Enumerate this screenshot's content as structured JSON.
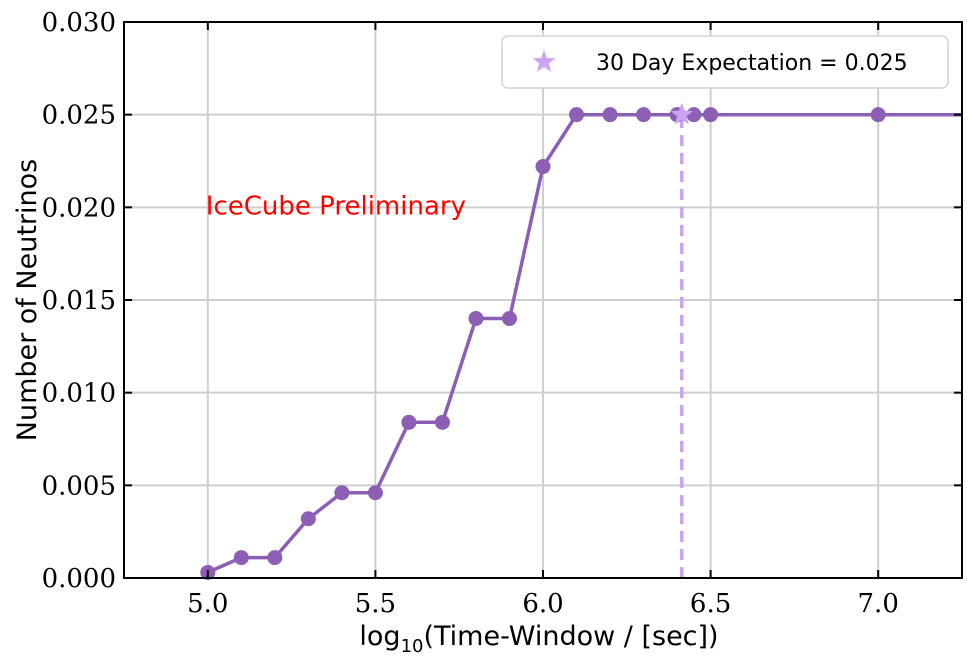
{
  "chart_data": {
    "type": "line",
    "title": "",
    "xlabel_prefix": "log",
    "xlabel_sub": "10",
    "xlabel_rest": "(Time-Window / [sec])",
    "ylabel": "Number of Neutrinos",
    "xlim": [
      4.75,
      7.25
    ],
    "ylim": [
      0.0,
      0.03
    ],
    "grid": true,
    "x_ticks": [
      5.0,
      5.5,
      6.0,
      6.5,
      7.0
    ],
    "x_tick_labels": [
      "5.0",
      "5.5",
      "6.0",
      "6.5",
      "7.0"
    ],
    "y_ticks": [
      0.0,
      0.005,
      0.01,
      0.015,
      0.02,
      0.025,
      0.03
    ],
    "y_tick_labels": [
      "0.000",
      "0.005",
      "0.010",
      "0.015",
      "0.020",
      "0.025",
      "0.030"
    ],
    "series": [
      {
        "name": "Number of Neutrinos",
        "color": "#8c5fb5",
        "x": [
          5.0,
          5.1,
          5.2,
          5.3,
          5.4,
          5.5,
          5.6,
          5.7,
          5.8,
          5.9,
          6.0,
          6.1,
          6.2,
          6.3,
          6.4,
          6.45,
          6.5,
          7.0,
          7.25
        ],
        "y": [
          0.0003,
          0.0011,
          0.0011,
          0.0032,
          0.0046,
          0.0046,
          0.0084,
          0.0084,
          0.014,
          0.014,
          0.0222,
          0.025,
          0.025,
          0.025,
          0.025,
          0.025,
          0.025,
          0.025,
          0.025
        ],
        "markers": [
          true,
          true,
          true,
          true,
          true,
          true,
          true,
          true,
          true,
          true,
          true,
          true,
          true,
          true,
          true,
          true,
          true,
          true,
          false
        ]
      }
    ],
    "expectation": {
      "label": "30 Day Expectation = 0.025",
      "x": 6.414,
      "y": 0.025,
      "color": "#c9a4f0"
    },
    "annotation": {
      "text": "IceCube Preliminary",
      "x": 5.0,
      "y": 0.0201,
      "color": "#ff0000"
    },
    "legend_position": "top-right"
  }
}
